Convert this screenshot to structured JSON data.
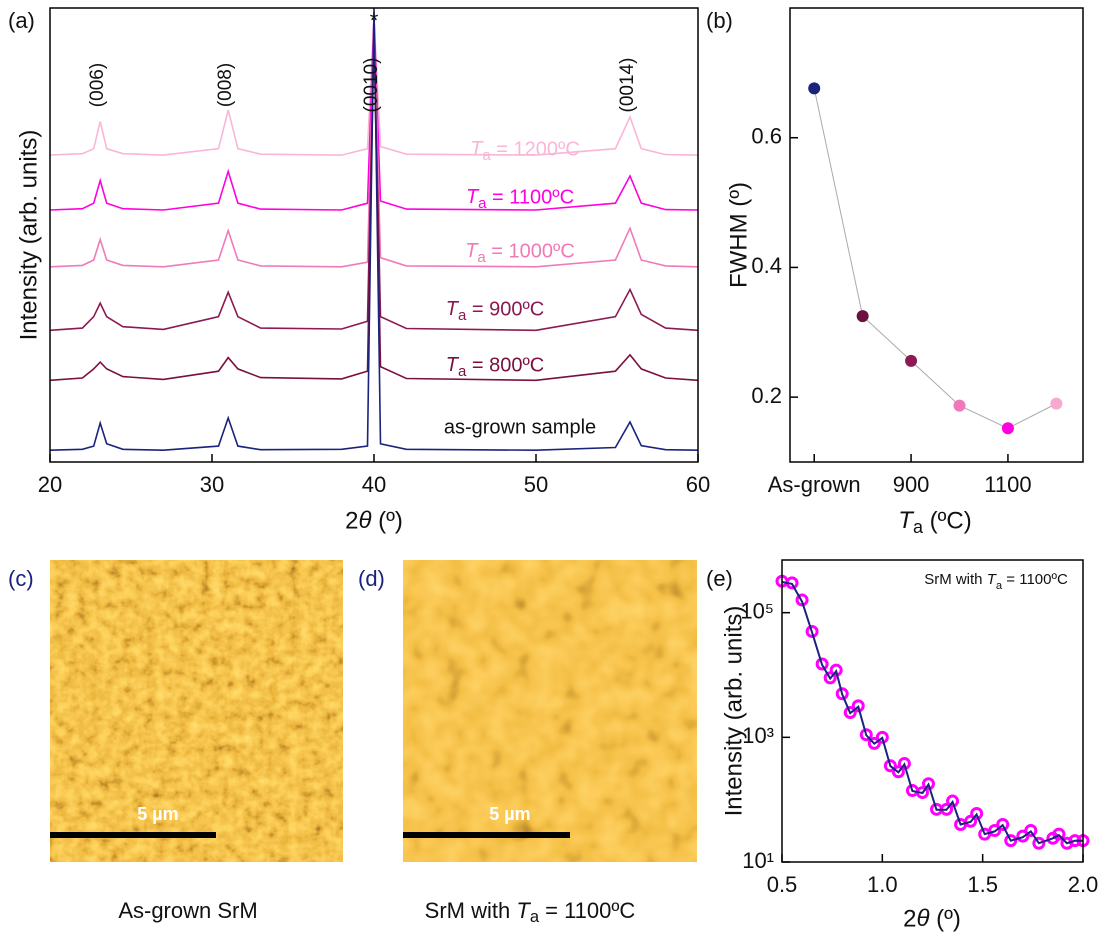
{
  "chart_data": [
    {
      "type": "line",
      "panel_label": "(a)",
      "x_label": "2θ (º)",
      "y_label": "Intensity (arb. units)",
      "x": [
        20,
        22,
        22.7,
        23.1,
        23.5,
        24.5,
        27,
        30.4,
        31,
        31.6,
        33,
        38,
        39.6,
        40,
        40.4,
        42,
        50,
        54.9,
        55.8,
        56.5,
        58,
        60
      ],
      "xlim": [
        20,
        60
      ],
      "xticks": [
        20,
        30,
        40,
        50,
        60
      ],
      "ylim": [
        0,
        100
      ],
      "peak_labels": [
        "(006)",
        "(008)",
        "(0010)",
        "(0014)"
      ],
      "substrate_mark": "*",
      "series": [
        {
          "name": "as-grown sample",
          "color": "#1a237e",
          "values": [
            2.6,
            2.8,
            3.5,
            8.6,
            4,
            2.8,
            2.6,
            3.5,
            9.7,
            3.5,
            2.7,
            2.8,
            3.5,
            100,
            4,
            2.8,
            2.6,
            3.2,
            8.8,
            3.6,
            2.7,
            2.6
          ]
        },
        {
          "name": "Ta = 800ºC",
          "color": "#7b1040",
          "values": [
            18,
            18.5,
            20.5,
            22,
            20.5,
            18.8,
            18.2,
            20,
            23,
            20.5,
            18.6,
            18.3,
            20,
            95,
            21,
            18.4,
            18,
            20,
            23.6,
            20.5,
            18.5,
            18
          ]
        },
        {
          "name": "Ta = 900ºC",
          "color": "#8b1a52",
          "values": [
            29,
            29.5,
            32,
            35,
            32,
            29.8,
            29.2,
            32,
            37.4,
            32,
            29.5,
            29.3,
            31,
            95,
            32,
            29.4,
            29,
            32,
            38,
            32.5,
            29.5,
            29
          ]
        },
        {
          "name": "Ta = 1000ºC",
          "color": "#f07ab8",
          "values": [
            43,
            43.3,
            44.5,
            49,
            44.5,
            43.3,
            43,
            44.5,
            51,
            44.5,
            43.2,
            43,
            44,
            97,
            45,
            43.2,
            43,
            44.5,
            51.5,
            44.5,
            43.2,
            43
          ]
        },
        {
          "name": "Ta = 1100ºC",
          "color": "#ff00e0",
          "values": [
            55.5,
            55.8,
            57,
            62,
            57,
            55.8,
            55.5,
            57,
            64,
            57,
            55.7,
            55.5,
            57,
            98,
            57.5,
            55.7,
            55.5,
            57,
            63,
            57,
            55.6,
            55.5
          ]
        },
        {
          "name": "Ta = 1200ºC",
          "color": "#f9b6d8",
          "values": [
            67.6,
            67.9,
            69,
            75,
            69,
            67.9,
            67.6,
            69,
            77.5,
            69,
            67.8,
            67.6,
            69,
            98,
            69.5,
            67.8,
            67.6,
            69,
            76,
            69,
            67.7,
            67.6
          ]
        }
      ]
    },
    {
      "type": "scatter",
      "panel_label": "(b)",
      "x_label": "Ta (ºC)",
      "y_label": "FWHM (º)",
      "x": [
        700,
        800,
        900,
        1000,
        1100,
        1200
      ],
      "values": [
        0.676,
        0.325,
        0.256,
        0.187,
        0.152,
        0.19
      ],
      "point_colors": [
        "#1a237e",
        "#6b1040",
        "#8b1a52",
        "#f07ab8",
        "#ff00e0",
        "#f9a8d0"
      ],
      "line_color": "#aaaaaa",
      "xlim": [
        650,
        1255
      ],
      "xticks": [
        {
          "value": 700,
          "label": "As-grown"
        },
        900,
        1100
      ],
      "ylim": [
        0.1,
        0.8
      ],
      "yticks": [
        0.2,
        0.4,
        0.6
      ]
    },
    {
      "type": "log-scatter",
      "panel_label": "(e)",
      "x_label": "2θ (º)",
      "y_label": "Intensity (arb. units)",
      "annotation": "SrM with Ta = 1100ºC",
      "log_y": true,
      "x": [
        0.5,
        0.55,
        0.6,
        0.65,
        0.7,
        0.74,
        0.77,
        0.8,
        0.84,
        0.88,
        0.92,
        0.96,
        1.0,
        1.04,
        1.08,
        1.11,
        1.15,
        1.2,
        1.23,
        1.27,
        1.32,
        1.35,
        1.39,
        1.44,
        1.47,
        1.51,
        1.56,
        1.6,
        1.64,
        1.7,
        1.74,
        1.78,
        1.85,
        1.88,
        1.92,
        1.96,
        2.0
      ],
      "xlim": [
        0.5,
        2.0
      ],
      "xticks": [
        0.5,
        {
          "value": 1.0,
          "label": "1.0"
        },
        1.5,
        {
          "value": 2.0,
          "label": "2.0"
        }
      ],
      "ylim": [
        10,
        700000
      ],
      "yticks": [
        {
          "value": 10,
          "label": "10¹"
        },
        {
          "value": 1000,
          "label": "10³"
        },
        {
          "value": 100000,
          "label": "10⁵"
        }
      ],
      "series": [
        {
          "color": "#ff00ff",
          "values": [
            320000,
            300000,
            160000,
            50000,
            15000,
            9000,
            12000,
            5000,
            2500,
            3200,
            1100,
            800,
            1000,
            350,
            280,
            380,
            140,
            130,
            180,
            70,
            70,
            95,
            40,
            45,
            60,
            28,
            32,
            40,
            22,
            26,
            32,
            20,
            24,
            28,
            20,
            22,
            22
          ]
        },
        {
          "color": "#1a237e",
          "values": [
            310000,
            290000,
            150000,
            48000,
            14500,
            8800,
            11500,
            4900,
            2450,
            3100,
            1080,
            790,
            980,
            345,
            275,
            370,
            138,
            128,
            175,
            69,
            69,
            92,
            40,
            44,
            58,
            28,
            31,
            39,
            22,
            25,
            31,
            20,
            24,
            27,
            20,
            22,
            22
          ]
        }
      ]
    }
  ],
  "images": [
    {
      "panel_label": "(c)",
      "scale_bar": "5 µm",
      "caption": "As-grown SrM"
    },
    {
      "panel_label": "(d)",
      "scale_bar": "5 µm",
      "caption": "SrM with Ta = 1100ºC"
    }
  ]
}
